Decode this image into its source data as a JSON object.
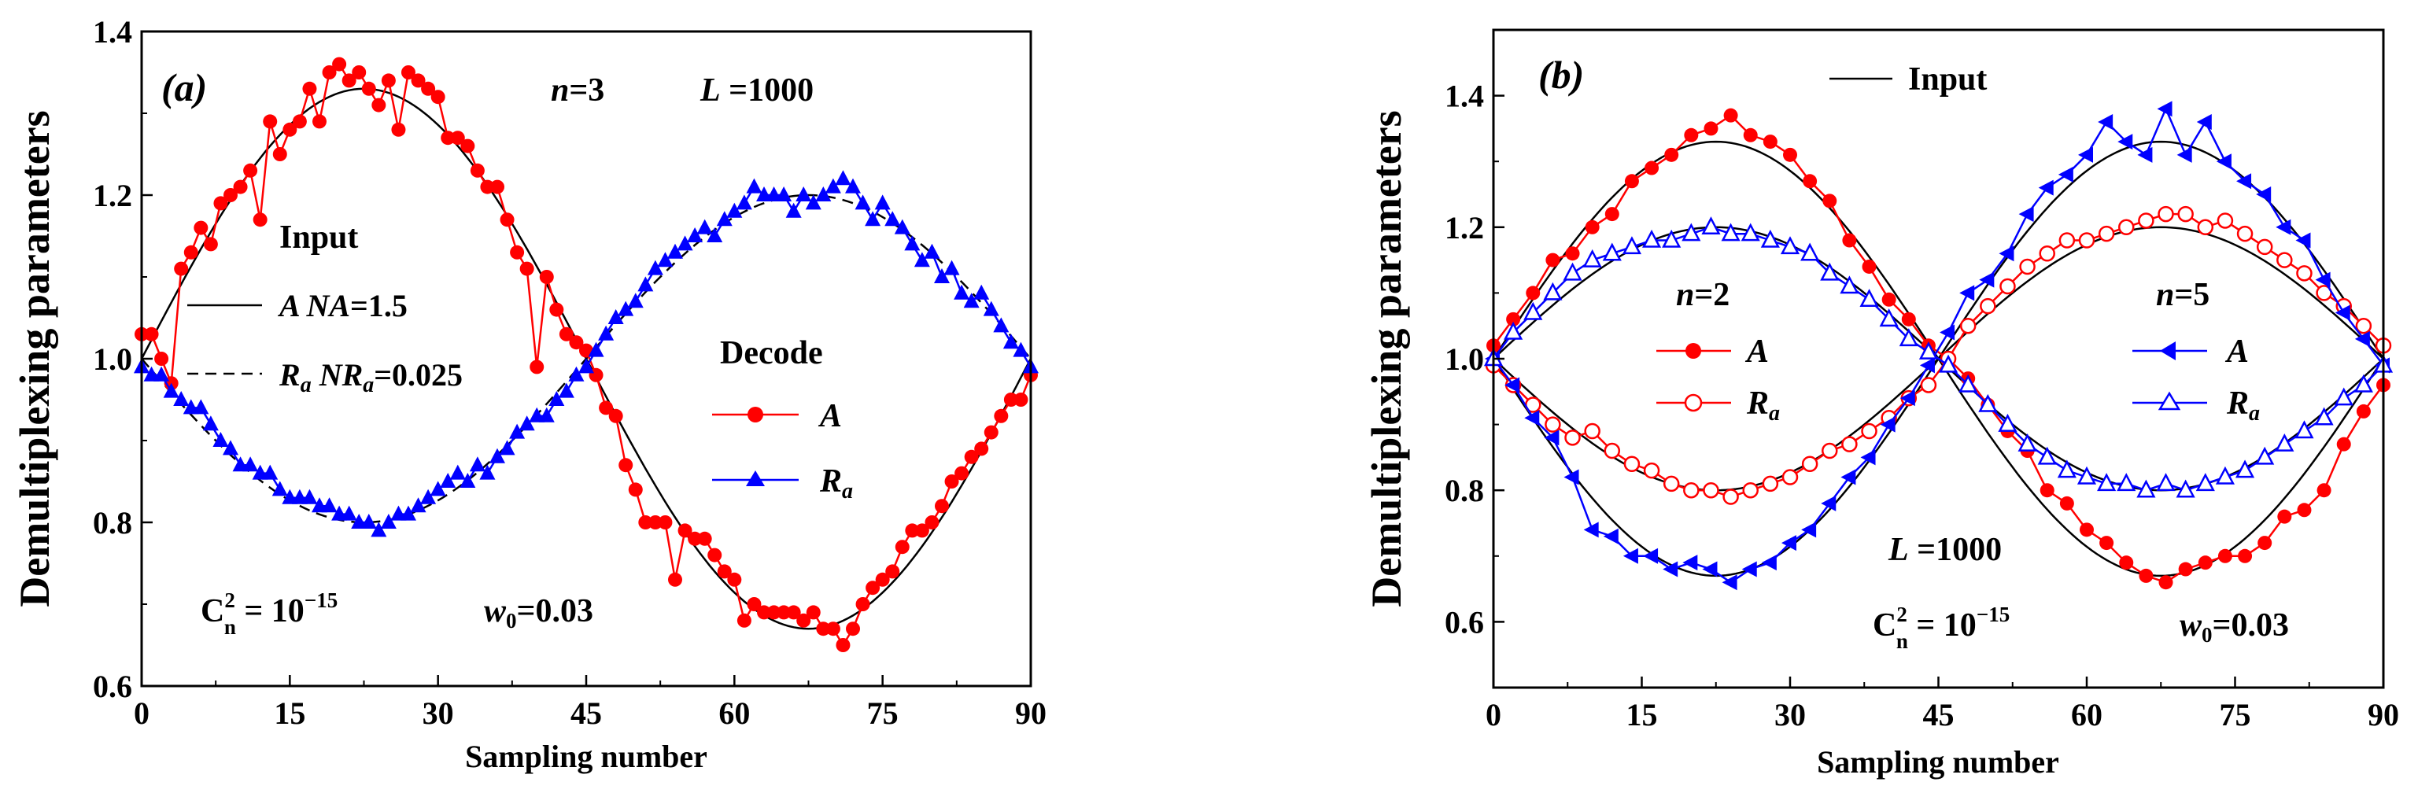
{
  "chart_data": [
    {
      "type": "line",
      "panel_label": "(a)",
      "xlabel": "Sampling number",
      "ylabel": "Demultiplexing parameters",
      "xlim": [
        0,
        90
      ],
      "ylim": [
        0.6,
        1.4
      ],
      "xticks": [
        0,
        15,
        30,
        45,
        60,
        75,
        90
      ],
      "yticks": [
        0.6,
        0.8,
        1.0,
        1.2,
        1.4
      ],
      "annotations": {
        "n": "n=3",
        "L": "L =1000",
        "cn2": "C²n = 10⁻¹⁵",
        "w0": "w₀=0.03",
        "input_title": "Input",
        "input_A": "A NA=1.5",
        "input_Ra": "Ra NRa=0.025",
        "decode_title": "Decode",
        "decode_A": "A",
        "decode_Ra": "Ra"
      },
      "series": [
        {
          "name": "A",
          "color": "#ff0000",
          "marker": "circle-filled",
          "x": [
            0,
            1,
            2,
            3,
            4,
            5,
            6,
            7,
            8,
            9,
            10,
            11,
            12,
            13,
            14,
            15,
            16,
            17,
            18,
            19,
            20,
            21,
            22,
            23,
            24,
            25,
            26,
            27,
            28,
            29,
            30,
            31,
            32,
            33,
            34,
            35,
            36,
            37,
            38,
            39,
            40,
            41,
            42,
            43,
            44,
            45,
            46,
            47,
            48,
            49,
            50,
            51,
            52,
            53,
            54,
            55,
            56,
            57,
            58,
            59,
            60,
            61,
            62,
            63,
            64,
            65,
            66,
            67,
            68,
            69,
            70,
            71,
            72,
            73,
            74,
            75,
            76,
            77,
            78,
            79,
            80,
            81,
            82,
            83,
            84,
            85,
            86,
            87,
            88,
            89,
            90
          ],
          "y": [
            1.03,
            1.03,
            1.0,
            0.97,
            1.11,
            1.13,
            1.16,
            1.14,
            1.19,
            1.2,
            1.21,
            1.23,
            1.17,
            1.29,
            1.25,
            1.28,
            1.29,
            1.33,
            1.29,
            1.35,
            1.36,
            1.34,
            1.35,
            1.33,
            1.31,
            1.34,
            1.28,
            1.35,
            1.34,
            1.33,
            1.32,
            1.27,
            1.27,
            1.26,
            1.23,
            1.21,
            1.21,
            1.17,
            1.13,
            1.11,
            0.99,
            1.1,
            1.06,
            1.03,
            1.02,
            1.01,
            0.98,
            0.94,
            0.93,
            0.87,
            0.84,
            0.8,
            0.8,
            0.8,
            0.73,
            0.79,
            0.78,
            0.78,
            0.76,
            0.74,
            0.73,
            0.68,
            0.7,
            0.69,
            0.69,
            0.69,
            0.69,
            0.68,
            0.69,
            0.67,
            0.67,
            0.65,
            0.67,
            0.7,
            0.72,
            0.73,
            0.74,
            0.77,
            0.79,
            0.79,
            0.8,
            0.82,
            0.85,
            0.86,
            0.88,
            0.89,
            0.91,
            0.93,
            0.95,
            0.95,
            0.98
          ]
        },
        {
          "name": "Ra",
          "color": "#0000ff",
          "marker": "triangle-filled",
          "x": [
            0,
            1,
            2,
            3,
            4,
            5,
            6,
            7,
            8,
            9,
            10,
            11,
            12,
            13,
            14,
            15,
            16,
            17,
            18,
            19,
            20,
            21,
            22,
            23,
            24,
            25,
            26,
            27,
            28,
            29,
            30,
            31,
            32,
            33,
            34,
            35,
            36,
            37,
            38,
            39,
            40,
            41,
            42,
            43,
            44,
            45,
            46,
            47,
            48,
            49,
            50,
            51,
            52,
            53,
            54,
            55,
            56,
            57,
            58,
            59,
            60,
            61,
            62,
            63,
            64,
            65,
            66,
            67,
            68,
            69,
            70,
            71,
            72,
            73,
            74,
            75,
            76,
            77,
            78,
            79,
            80,
            81,
            82,
            83,
            84,
            85,
            86,
            87,
            88,
            89,
            90
          ],
          "y": [
            0.99,
            0.98,
            0.98,
            0.96,
            0.95,
            0.94,
            0.94,
            0.92,
            0.9,
            0.89,
            0.87,
            0.87,
            0.86,
            0.86,
            0.84,
            0.83,
            0.83,
            0.83,
            0.82,
            0.82,
            0.81,
            0.81,
            0.8,
            0.8,
            0.79,
            0.8,
            0.81,
            0.81,
            0.82,
            0.83,
            0.84,
            0.85,
            0.86,
            0.85,
            0.87,
            0.86,
            0.88,
            0.89,
            0.91,
            0.92,
            0.93,
            0.93,
            0.95,
            0.96,
            0.98,
            0.99,
            1.01,
            1.03,
            1.05,
            1.06,
            1.07,
            1.09,
            1.11,
            1.12,
            1.13,
            1.14,
            1.15,
            1.16,
            1.15,
            1.17,
            1.18,
            1.19,
            1.21,
            1.2,
            1.2,
            1.2,
            1.18,
            1.2,
            1.19,
            1.2,
            1.21,
            1.22,
            1.21,
            1.19,
            1.17,
            1.19,
            1.17,
            1.16,
            1.14,
            1.12,
            1.13,
            1.1,
            1.11,
            1.08,
            1.07,
            1.08,
            1.06,
            1.04,
            1.02,
            1.01,
            0.99
          ]
        },
        {
          "name": "Input A",
          "color": "#000000",
          "line": "solid",
          "function": "1+0.33*sin(2*pi*x/90)"
        },
        {
          "name": "Input Ra",
          "color": "#000000",
          "line": "dashed",
          "function": "1-0.2*sin(2*pi*x/90)"
        }
      ]
    },
    {
      "type": "line",
      "panel_label": "(b)",
      "xlabel": "Sampling number",
      "ylabel": "Demultiplexing parameters",
      "xlim": [
        0,
        90
      ],
      "ylim": [
        0.5,
        1.5
      ],
      "xticks": [
        0,
        15,
        30,
        45,
        60,
        75,
        90
      ],
      "yticks": [
        0.6,
        0.8,
        1.0,
        1.2,
        1.4
      ],
      "annotations": {
        "input": "Input",
        "n2": "n=2",
        "n2_A": "A",
        "n2_Ra": "Ra",
        "n5": "n=5",
        "n5_A": "A",
        "n5_Ra": "Ra",
        "L": "L =1000",
        "cn2": "C²n = 10⁻¹⁵",
        "w0": "w₀=0.03"
      },
      "series": [
        {
          "name": "A (n=2)",
          "color": "#ff0000",
          "marker": "circle-filled",
          "x": [
            0,
            2,
            4,
            6,
            8,
            10,
            12,
            14,
            16,
            18,
            20,
            22,
            24,
            26,
            28,
            30,
            32,
            34,
            36,
            38,
            40,
            42,
            44,
            46,
            48,
            50,
            52,
            54,
            56,
            58,
            60,
            62,
            64,
            66,
            68,
            70,
            72,
            74,
            76,
            78,
            80,
            82,
            84,
            86,
            88,
            90
          ],
          "y": [
            1.02,
            1.06,
            1.1,
            1.15,
            1.16,
            1.2,
            1.22,
            1.27,
            1.29,
            1.31,
            1.34,
            1.35,
            1.37,
            1.34,
            1.33,
            1.31,
            1.27,
            1.24,
            1.18,
            1.14,
            1.09,
            1.06,
            1.02,
            1.0,
            0.97,
            0.93,
            0.89,
            0.86,
            0.8,
            0.78,
            0.74,
            0.72,
            0.69,
            0.67,
            0.66,
            0.68,
            0.69,
            0.7,
            0.7,
            0.72,
            0.76,
            0.77,
            0.8,
            0.87,
            0.92,
            0.96
          ]
        },
        {
          "name": "Ra (n=2)",
          "color": "#ff0000",
          "marker": "circle-open",
          "x": [
            0,
            2,
            4,
            6,
            8,
            10,
            12,
            14,
            16,
            18,
            20,
            22,
            24,
            26,
            28,
            30,
            32,
            34,
            36,
            38,
            40,
            42,
            44,
            46,
            48,
            50,
            52,
            54,
            56,
            58,
            60,
            62,
            64,
            66,
            68,
            70,
            72,
            74,
            76,
            78,
            80,
            82,
            84,
            86,
            88,
            90
          ],
          "y": [
            0.99,
            0.96,
            0.93,
            0.9,
            0.88,
            0.89,
            0.86,
            0.84,
            0.83,
            0.81,
            0.8,
            0.8,
            0.79,
            0.8,
            0.81,
            0.82,
            0.84,
            0.86,
            0.87,
            0.89,
            0.91,
            0.94,
            0.96,
            1.0,
            1.05,
            1.08,
            1.11,
            1.14,
            1.16,
            1.18,
            1.18,
            1.19,
            1.2,
            1.21,
            1.22,
            1.22,
            1.2,
            1.21,
            1.19,
            1.17,
            1.15,
            1.13,
            1.1,
            1.08,
            1.05,
            1.02
          ]
        },
        {
          "name": "A (n=5)",
          "color": "#0000ff",
          "marker": "triangle-left-filled",
          "x": [
            0,
            2,
            4,
            6,
            8,
            10,
            12,
            14,
            16,
            18,
            20,
            22,
            24,
            26,
            28,
            30,
            32,
            34,
            36,
            38,
            40,
            42,
            44,
            46,
            48,
            50,
            52,
            54,
            56,
            58,
            60,
            62,
            64,
            66,
            68,
            70,
            72,
            74,
            76,
            78,
            80,
            82,
            84,
            86,
            88,
            90
          ],
          "y": [
            1.0,
            0.96,
            0.91,
            0.88,
            0.82,
            0.74,
            0.73,
            0.7,
            0.7,
            0.68,
            0.69,
            0.68,
            0.66,
            0.68,
            0.69,
            0.72,
            0.74,
            0.78,
            0.82,
            0.85,
            0.9,
            0.94,
            0.99,
            1.04,
            1.1,
            1.12,
            1.16,
            1.22,
            1.26,
            1.28,
            1.31,
            1.36,
            1.33,
            1.31,
            1.38,
            1.31,
            1.36,
            1.3,
            1.27,
            1.25,
            1.2,
            1.18,
            1.12,
            1.07,
            1.03,
            0.99
          ]
        },
        {
          "name": "Ra (n=5)",
          "color": "#0000ff",
          "marker": "triangle-open",
          "x": [
            0,
            2,
            4,
            6,
            8,
            10,
            12,
            14,
            16,
            18,
            20,
            22,
            24,
            26,
            28,
            30,
            32,
            34,
            36,
            38,
            40,
            42,
            44,
            46,
            48,
            50,
            52,
            54,
            56,
            58,
            60,
            62,
            64,
            66,
            68,
            70,
            72,
            74,
            76,
            78,
            80,
            82,
            84,
            86,
            88,
            90
          ],
          "y": [
            1.0,
            1.04,
            1.07,
            1.1,
            1.13,
            1.15,
            1.16,
            1.17,
            1.18,
            1.18,
            1.19,
            1.2,
            1.19,
            1.19,
            1.18,
            1.17,
            1.16,
            1.13,
            1.11,
            1.09,
            1.06,
            1.03,
            1.01,
            0.99,
            0.96,
            0.93,
            0.9,
            0.87,
            0.85,
            0.83,
            0.82,
            0.81,
            0.81,
            0.8,
            0.81,
            0.8,
            0.81,
            0.82,
            0.83,
            0.85,
            0.87,
            0.89,
            0.91,
            0.94,
            0.96,
            0.99
          ]
        },
        {
          "name": "Input A",
          "color": "#000000",
          "line": "solid",
          "function": "1+0.33*sin(2*pi*x/90)"
        },
        {
          "name": "Input Ra",
          "color": "#000000",
          "line": "solid",
          "function": "1+0.2*sin(2*pi*x/90)"
        },
        {
          "name": "Input A inv",
          "color": "#000000",
          "line": "solid",
          "function": "1-0.33*sin(2*pi*x/90)"
        },
        {
          "name": "Input Ra inv",
          "color": "#000000",
          "line": "solid",
          "function": "1-0.2*sin(2*pi*x/90)"
        }
      ]
    }
  ]
}
